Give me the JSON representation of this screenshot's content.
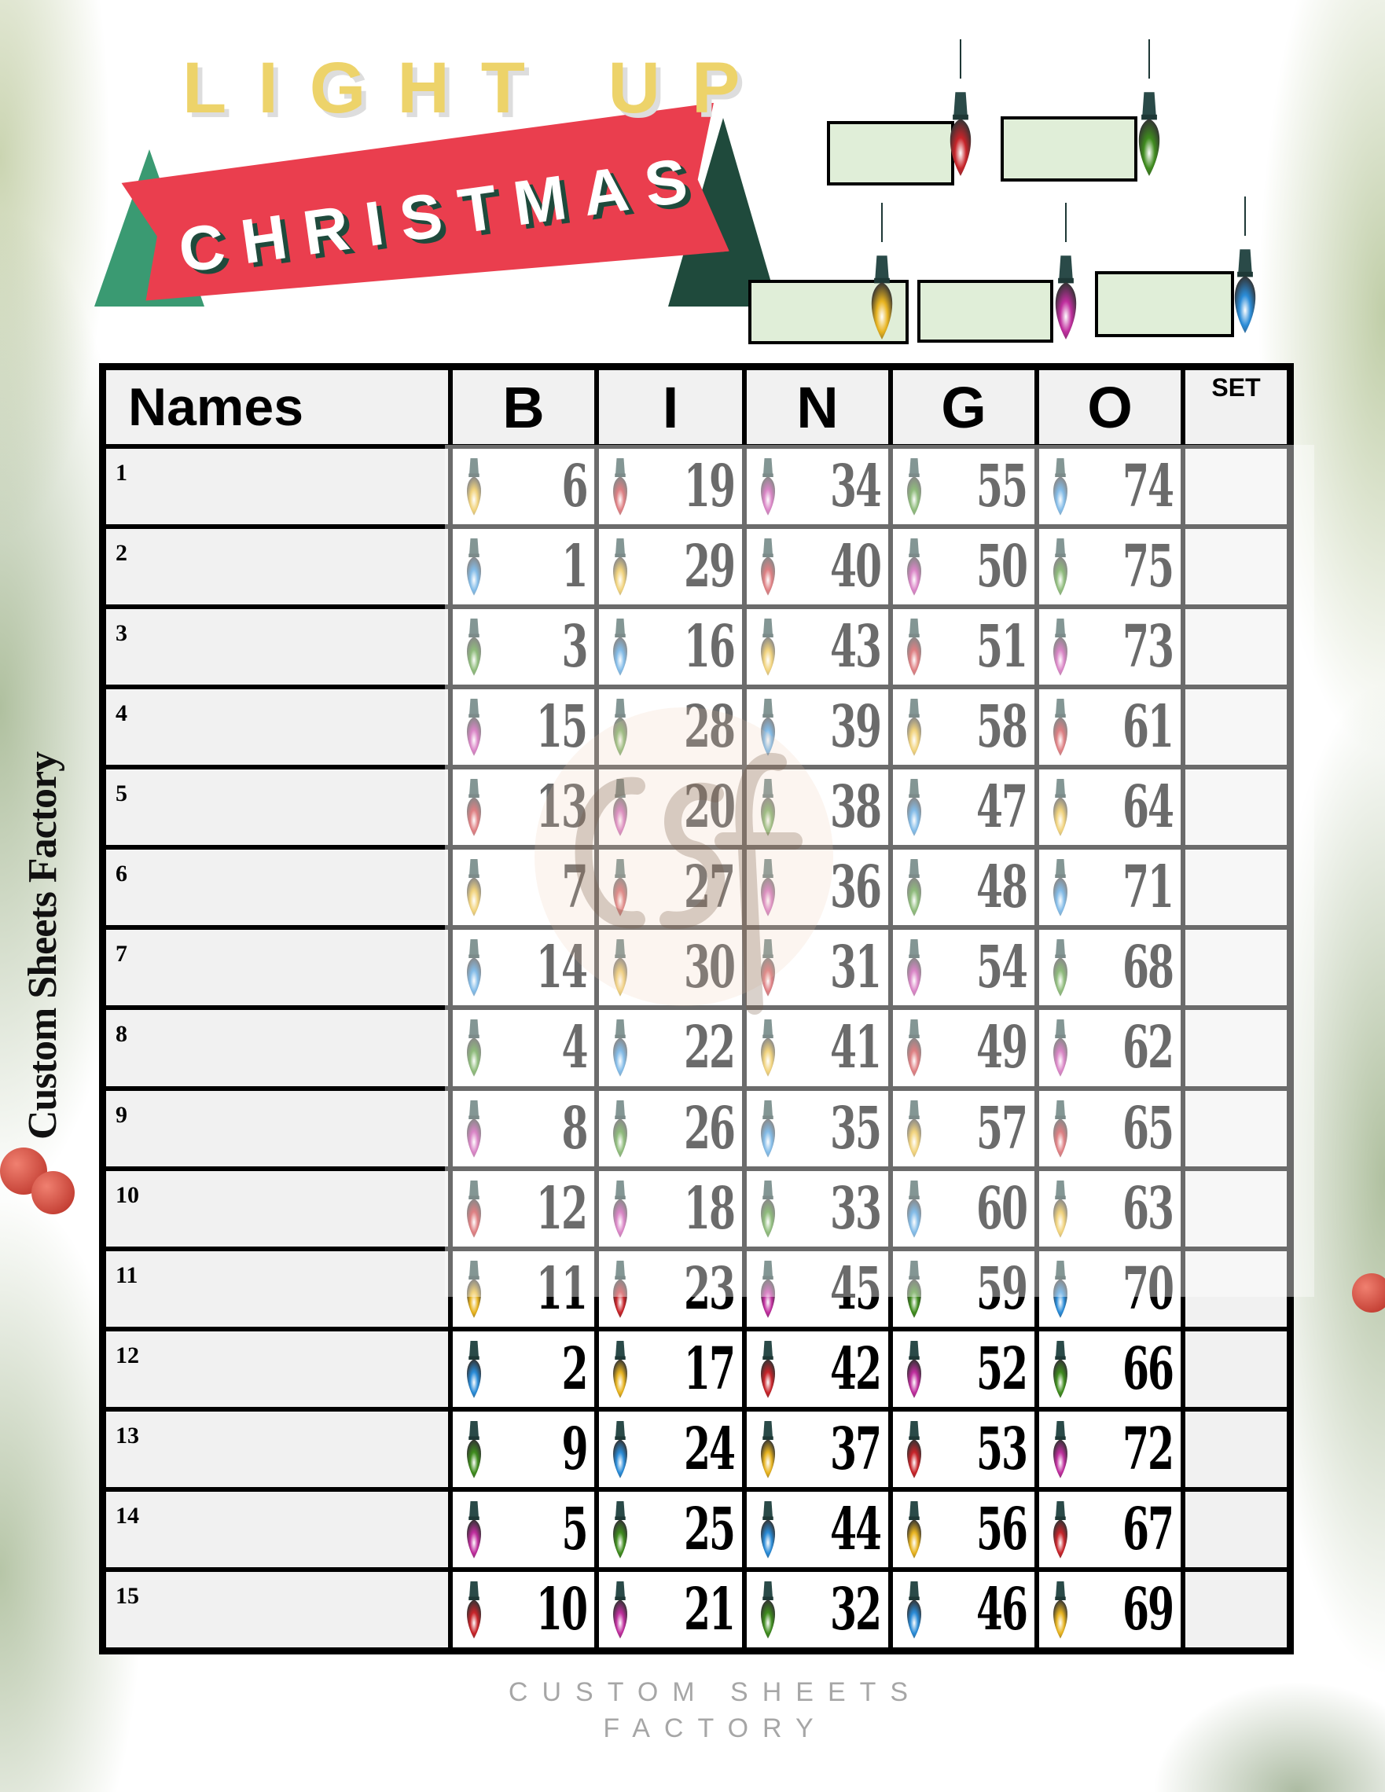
{
  "header": {
    "title_line1": "LIGHT UP",
    "title_line2": "CHRISTMAS"
  },
  "prize_boxes": [
    {
      "color": "red"
    },
    {
      "color": "green"
    },
    {
      "color": "yellow"
    },
    {
      "color": "pink"
    },
    {
      "color": "blue"
    }
  ],
  "side_text": "Custom Sheets Factory",
  "watermark": {
    "logo": "csf",
    "line1": "CUSTOM SHEETS",
    "line2": "FACTORY"
  },
  "colors": {
    "yellow": "#e8b420",
    "red": "#c8242a",
    "pink": "#c02e9e",
    "green": "#3f8c1e",
    "blue": "#2a8cd8",
    "cap": "#2a4a48"
  },
  "table": {
    "headers": [
      "Names",
      "B",
      "I",
      "N",
      "G",
      "O",
      "SET"
    ],
    "rows": [
      {
        "label": "1",
        "cells": [
          [
            6,
            "yellow"
          ],
          [
            19,
            "red"
          ],
          [
            34,
            "pink"
          ],
          [
            55,
            "green"
          ],
          [
            74,
            "blue"
          ]
        ]
      },
      {
        "label": "2",
        "cells": [
          [
            1,
            "blue"
          ],
          [
            29,
            "yellow"
          ],
          [
            40,
            "red"
          ],
          [
            50,
            "pink"
          ],
          [
            75,
            "green"
          ]
        ]
      },
      {
        "label": "3",
        "cells": [
          [
            3,
            "green"
          ],
          [
            16,
            "blue"
          ],
          [
            43,
            "yellow"
          ],
          [
            51,
            "red"
          ],
          [
            73,
            "pink"
          ]
        ]
      },
      {
        "label": "4",
        "cells": [
          [
            15,
            "pink"
          ],
          [
            28,
            "green"
          ],
          [
            39,
            "blue"
          ],
          [
            58,
            "yellow"
          ],
          [
            61,
            "red"
          ]
        ]
      },
      {
        "label": "5",
        "cells": [
          [
            13,
            "red"
          ],
          [
            20,
            "pink"
          ],
          [
            38,
            "green"
          ],
          [
            47,
            "blue"
          ],
          [
            64,
            "yellow"
          ]
        ]
      },
      {
        "label": "6",
        "cells": [
          [
            7,
            "yellow"
          ],
          [
            27,
            "red"
          ],
          [
            36,
            "pink"
          ],
          [
            48,
            "green"
          ],
          [
            71,
            "blue"
          ]
        ]
      },
      {
        "label": "7",
        "cells": [
          [
            14,
            "blue"
          ],
          [
            30,
            "yellow"
          ],
          [
            31,
            "red"
          ],
          [
            54,
            "pink"
          ],
          [
            68,
            "green"
          ]
        ]
      },
      {
        "label": "8",
        "cells": [
          [
            4,
            "green"
          ],
          [
            22,
            "blue"
          ],
          [
            41,
            "yellow"
          ],
          [
            49,
            "red"
          ],
          [
            62,
            "pink"
          ]
        ]
      },
      {
        "label": "9",
        "cells": [
          [
            8,
            "pink"
          ],
          [
            26,
            "green"
          ],
          [
            35,
            "blue"
          ],
          [
            57,
            "yellow"
          ],
          [
            65,
            "red"
          ]
        ]
      },
      {
        "label": "10",
        "cells": [
          [
            12,
            "red"
          ],
          [
            18,
            "pink"
          ],
          [
            33,
            "green"
          ],
          [
            60,
            "blue"
          ],
          [
            63,
            "yellow"
          ]
        ]
      },
      {
        "label": "11",
        "cells": [
          [
            11,
            "yellow"
          ],
          [
            23,
            "red"
          ],
          [
            45,
            "pink"
          ],
          [
            59,
            "green"
          ],
          [
            70,
            "blue"
          ]
        ]
      },
      {
        "label": "12",
        "cells": [
          [
            2,
            "blue"
          ],
          [
            17,
            "yellow"
          ],
          [
            42,
            "red"
          ],
          [
            52,
            "pink"
          ],
          [
            66,
            "green"
          ]
        ]
      },
      {
        "label": "13",
        "cells": [
          [
            9,
            "green"
          ],
          [
            24,
            "blue"
          ],
          [
            37,
            "yellow"
          ],
          [
            53,
            "red"
          ],
          [
            72,
            "pink"
          ]
        ]
      },
      {
        "label": "14",
        "cells": [
          [
            5,
            "pink"
          ],
          [
            25,
            "green"
          ],
          [
            44,
            "blue"
          ],
          [
            56,
            "yellow"
          ],
          [
            67,
            "red"
          ]
        ]
      },
      {
        "label": "15",
        "cells": [
          [
            10,
            "red"
          ],
          [
            21,
            "pink"
          ],
          [
            32,
            "green"
          ],
          [
            46,
            "blue"
          ],
          [
            69,
            "yellow"
          ]
        ]
      }
    ]
  }
}
